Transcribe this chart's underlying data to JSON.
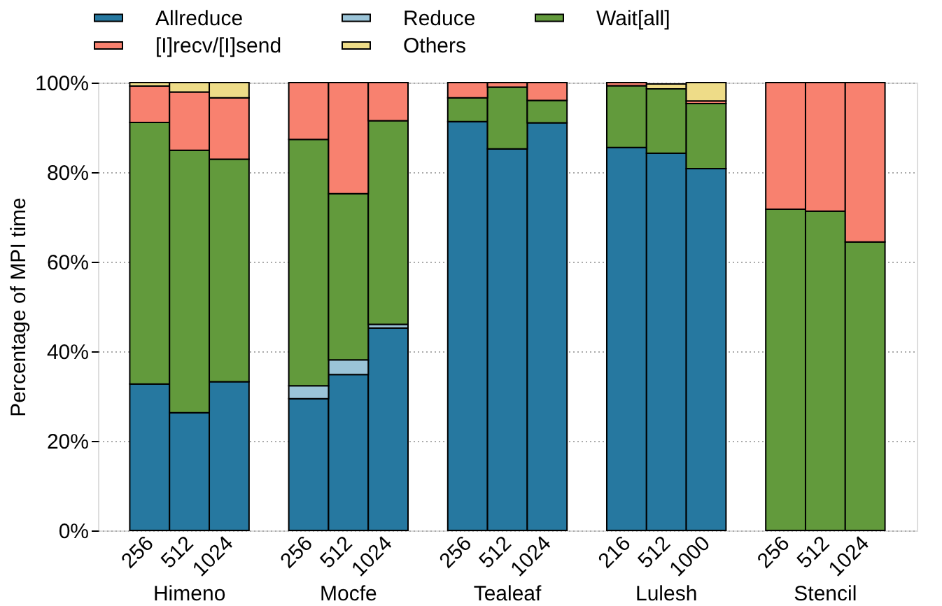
{
  "chart_data": {
    "type": "bar",
    "stacked": true,
    "ylabel": "Percentage of MPI time",
    "categories": [
      "256",
      "512",
      "1024",
      null,
      "256",
      "512",
      "1024",
      null,
      "256",
      "512",
      "1024",
      null,
      "216",
      "512",
      "1000",
      null,
      "256",
      "512",
      "1024"
    ],
    "series": [
      {
        "name": "Allreduce",
        "color": "#2678a0",
        "values": [
          32.7,
          26.3,
          33.2,
          null,
          29.4,
          34.8,
          45.2,
          null,
          91.3,
          85.2,
          91.0,
          null,
          85.5,
          84.2,
          80.8,
          null,
          null,
          null,
          null
        ]
      },
      {
        "name": "Reduce",
        "color": "#9bc4d8",
        "values": [
          null,
          null,
          null,
          null,
          2.9,
          3.3,
          0.8,
          null,
          null,
          null,
          null,
          null,
          null,
          null,
          null,
          null,
          null,
          null,
          null
        ]
      },
      {
        "name": "Wait[all]",
        "color": "#629a3c",
        "values": [
          58.4,
          58.6,
          49.7,
          null,
          55.0,
          37.1,
          45.5,
          null,
          5.3,
          13.8,
          5.0,
          null,
          13.8,
          14.4,
          14.5,
          null,
          71.7,
          71.3,
          64.4
        ]
      },
      {
        "name": "[I]recv/[I]send",
        "color": "#f8816f",
        "values": [
          8.1,
          13.0,
          13.7,
          null,
          12.7,
          24.8,
          8.5,
          null,
          3.4,
          1.0,
          4.0,
          null,
          0.7,
          null,
          0.6,
          null,
          28.3,
          28.7,
          35.6
        ]
      },
      {
        "name": "Others",
        "color": "#eedc88",
        "values": [
          0.8,
          2.1,
          3.4,
          null,
          null,
          null,
          null,
          null,
          null,
          null,
          null,
          null,
          null,
          1.1,
          4.1,
          null,
          null,
          null,
          null
        ]
      }
    ],
    "ylim": [
      0,
      100
    ],
    "yticks": [
      {
        "value": 0,
        "label": "0%"
      },
      {
        "value": 20,
        "label": "20%"
      },
      {
        "value": 40,
        "label": "40%"
      },
      {
        "value": 60,
        "label": "60%"
      },
      {
        "value": 80,
        "label": "80%"
      },
      {
        "value": 100,
        "label": "100%"
      }
    ],
    "grid": "y",
    "legend": "top",
    "annotations": [
      "Himeno",
      "Mocfe",
      "Tealeaf",
      "Lulesh",
      "Stencil"
    ]
  }
}
